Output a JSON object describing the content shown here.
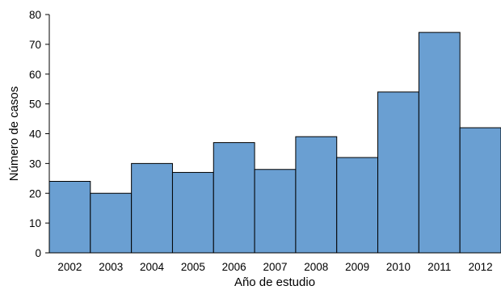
{
  "chart_data": {
    "type": "bar",
    "categories": [
      "2002",
      "2003",
      "2004",
      "2005",
      "2006",
      "2007",
      "2008",
      "2009",
      "2010",
      "2011",
      "2012"
    ],
    "values": [
      24,
      20,
      30,
      27,
      37,
      28,
      39,
      32,
      54,
      74,
      42
    ],
    "title": "",
    "xlabel": "Año de estudio",
    "ylabel": "Número de casos",
    "ylim": [
      0,
      80
    ],
    "yticks": [
      0,
      10,
      20,
      30,
      40,
      50,
      60,
      70,
      80
    ],
    "grid": false,
    "legend": "none",
    "bar_color": "#6a9fd2",
    "bar_edge_color": "#000000"
  }
}
